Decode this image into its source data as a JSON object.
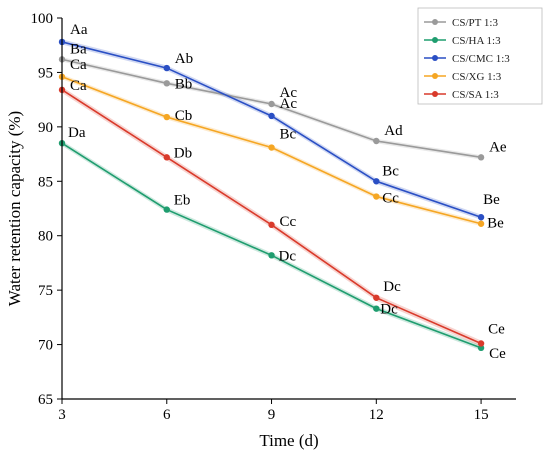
{
  "chart_data": {
    "type": "line",
    "xlabel": "Time (d)",
    "ylabel": "Water retention capacity (%)",
    "x": [
      3,
      6,
      9,
      12,
      15
    ],
    "xlim": [
      3,
      16
    ],
    "ylim": [
      65,
      100
    ],
    "xticks": [
      3,
      6,
      9,
      12,
      15
    ],
    "yticks": [
      65,
      70,
      75,
      80,
      85,
      90,
      95,
      100
    ],
    "legend_position": "top-right",
    "series": [
      {
        "name": "CS/PT 1:3",
        "color": "#9a9a9a",
        "values": [
          96.2,
          94.0,
          92.1,
          88.7,
          87.2
        ],
        "labels": [
          "Ba",
          "Bb",
          "Ac",
          "Ad",
          "Ae"
        ]
      },
      {
        "name": "CS/HA 1:3",
        "color": "#1f9d6f",
        "values": [
          88.5,
          82.4,
          78.2,
          73.3,
          69.7
        ],
        "labels": [
          "Da",
          "Eb",
          "Dc",
          "Dc",
          "Ce"
        ]
      },
      {
        "name": "CS/CMC 1:3",
        "color": "#2a4fc4",
        "values": [
          97.8,
          95.4,
          91.0,
          85.0,
          81.7
        ],
        "labels": [
          "Aa",
          "Ab",
          "Ac",
          "Bc",
          "Be"
        ]
      },
      {
        "name": "CS/XG 1:3",
        "color": "#f5a623",
        "values": [
          94.6,
          90.9,
          88.1,
          83.6,
          81.1
        ],
        "labels": [
          "Ca",
          "Cb",
          "Bc",
          "Cc",
          "Be"
        ]
      },
      {
        "name": "CS/SA 1:3",
        "color": "#d93a2b",
        "values": [
          93.4,
          87.2,
          81.0,
          74.3,
          70.1
        ],
        "labels": [
          "Ca",
          "Db",
          "Cc",
          "Dc",
          "Ce"
        ]
      }
    ]
  }
}
